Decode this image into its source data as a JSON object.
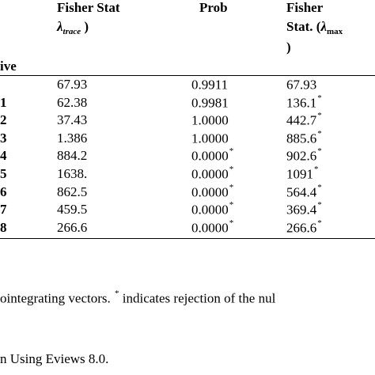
{
  "header": {
    "col1_line1": "Fisher Stat",
    "col1_line2_open": "(",
    "col1_lambda": "λ",
    "col1_sub": "trace",
    "col1_close": ")",
    "col2": "Prob",
    "col3_line1": "Fisher",
    "col3_line2_a": "Stat. (",
    "col3_lambda": "λ",
    "col3_sub": "max",
    "col3_line3": ")",
    "row_header_fragment": "ive"
  },
  "rows": [
    {
      "label": "",
      "fisher_trace": "67.93",
      "prob": "0.9911",
      "prob_star": "",
      "fisher_max": "67.93",
      "max_star": ""
    },
    {
      "label": "1",
      "fisher_trace": "62.38",
      "prob": "0.9981",
      "prob_star": "",
      "fisher_max": "136.1",
      "max_star": "*"
    },
    {
      "label": "2",
      "fisher_trace": "37.43",
      "prob": "1.0000",
      "prob_star": "",
      "fisher_max": "442.7",
      "max_star": "*"
    },
    {
      "label": "3",
      "fisher_trace": "1.386",
      "prob": "1.0000",
      "prob_star": "",
      "fisher_max": "885.6",
      "max_star": "*"
    },
    {
      "label": "4",
      "fisher_trace": "884.2",
      "prob": "0.0000",
      "prob_star": "*",
      "fisher_max": "902.6",
      "max_star": "*"
    },
    {
      "label": "5",
      "fisher_trace": "1638.",
      "prob": "0.0000",
      "prob_star": "*",
      "fisher_max": "1091",
      "max_star": "*"
    },
    {
      "label": "6",
      "fisher_trace": "862.5",
      "prob": "0.0000",
      "prob_star": "*",
      "fisher_max": "564.4",
      "max_star": "*"
    },
    {
      "label": "7",
      "fisher_trace": "459.5",
      "prob": "0.0000",
      "prob_star": "*",
      "fisher_max": "369.4",
      "max_star": "*"
    },
    {
      "label": "8",
      "fisher_trace": "266.6",
      "prob": "0.0000",
      "prob_star": "*",
      "fisher_max": "266.6",
      "max_star": "*"
    }
  ],
  "notes": {
    "line1_a": "ointegrating vectors.",
    "line1_star": "*",
    "line1_b": "indicates rejection of the nul",
    "line2": "n Using Eviews 8.0."
  }
}
